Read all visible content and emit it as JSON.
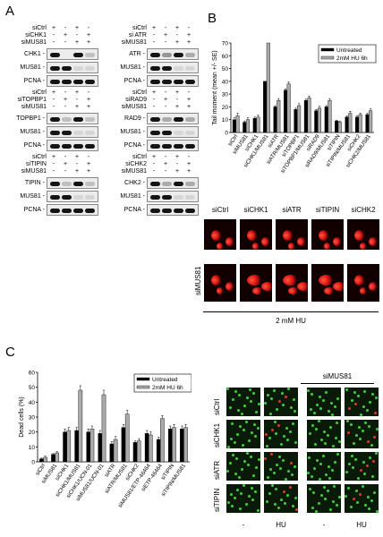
{
  "panels": {
    "a": "A",
    "b": "B",
    "c": "C"
  },
  "blots": [
    {
      "id": "chk1",
      "rows": [
        [
          "siCtrl",
          [
            "+",
            "-",
            "+",
            "-"
          ]
        ],
        [
          "siCHK1",
          [
            "-",
            "+",
            "-",
            "+"
          ]
        ],
        [
          "siMUS81",
          [
            "-",
            "-",
            "+",
            "+"
          ]
        ]
      ],
      "bands": [
        "CHK1 -",
        "MUS81 -",
        "PCNA -"
      ]
    },
    {
      "id": "atr",
      "rows": [
        [
          "siCtrl",
          [
            "+",
            "-",
            "+",
            "-"
          ]
        ],
        [
          "si ATR",
          [
            "-",
            "+",
            "-",
            "+"
          ]
        ],
        [
          "siMUS81",
          [
            "-",
            "-",
            "+",
            "+"
          ]
        ]
      ],
      "bands": [
        "ATR -",
        "MUS81 -",
        "PCNA -"
      ]
    },
    {
      "id": "topbp1",
      "rows": [
        [
          "siCtrl",
          [
            "+",
            "-",
            "+",
            "-"
          ]
        ],
        [
          "siTOPBP1",
          [
            "-",
            "+",
            "-",
            "+"
          ]
        ],
        [
          "siMUS81",
          [
            "-",
            "-",
            "+",
            "+"
          ]
        ]
      ],
      "bands": [
        "TOPBP1 -",
        "MUS81 -",
        "PCNA -"
      ]
    },
    {
      "id": "rad9",
      "rows": [
        [
          "siCtrl",
          [
            "+",
            "-",
            "+",
            "-"
          ]
        ],
        [
          "siRAD9",
          [
            "-",
            "+",
            "-",
            "+"
          ]
        ],
        [
          "siMUS81",
          [
            "-",
            "-",
            "+",
            "+"
          ]
        ]
      ],
      "bands": [
        "RAD9 -",
        "MUS81 -",
        "PCNA -"
      ]
    },
    {
      "id": "tipin",
      "rows": [
        [
          "siCtrl",
          [
            "+",
            "-",
            "+",
            "-"
          ]
        ],
        [
          "siTIPIN",
          [
            "-",
            "+",
            "-",
            "+"
          ]
        ],
        [
          "siMUS81",
          [
            "-",
            "-",
            "+",
            "+"
          ]
        ]
      ],
      "bands": [
        "TIPIN -",
        "MUS81 -",
        "PCNA -"
      ]
    },
    {
      "id": "chk2",
      "rows": [
        [
          "siCtrl",
          [
            "+",
            "-",
            "+",
            "-"
          ]
        ],
        [
          "siCHK2",
          [
            "-",
            "+",
            "-",
            "+"
          ]
        ],
        [
          "siMUS81",
          [
            "-",
            "-",
            "+",
            "+"
          ]
        ]
      ],
      "bands": [
        "CHK2 -",
        "MUS81 -",
        "PCNA -"
      ]
    }
  ],
  "comet": {
    "columns": [
      "siCtrl",
      "siCHK1",
      "siATR",
      "siTIPIN",
      "siCHK2"
    ],
    "row_label": "siMUS81",
    "condition": "2 mM HU"
  },
  "viability": {
    "top_label": "siMUS81",
    "rows": [
      "siCtrl",
      "siCHK1",
      "siATR",
      "siTIPIN"
    ],
    "bottom": [
      "-",
      "HU",
      "-",
      "HU"
    ]
  },
  "chart_data": [
    {
      "type": "bar",
      "ylabel": "Tail moment (mean +/- SE)",
      "ylim": [
        0,
        70
      ],
      "yticks": [
        0,
        10,
        20,
        30,
        40,
        50,
        60,
        70
      ],
      "categories": [
        "siCtrl",
        "siMUS81",
        "siCHK1",
        "siCHK1/MUS81",
        "siATR",
        "siATR/MUS81",
        "siTOPBP1",
        "siTOPBP1/MUS81",
        "siRAD9",
        "siRAD9/MUS81",
        "siTIPIN",
        "siTIPIN/MUS81",
        "siCHK2",
        "siCHK2/MUS81"
      ],
      "series": [
        {
          "name": "Untreated",
          "color": "#000000",
          "values": [
            10,
            8,
            11,
            40,
            20,
            33,
            18,
            25,
            17,
            20,
            9,
            12,
            12,
            14
          ]
        },
        {
          "name": "2mM HU 6h",
          "color": "#aaaaaa",
          "values": [
            13,
            10,
            12,
            70,
            25,
            38,
            21,
            27,
            19,
            25,
            8,
            15,
            14,
            17
          ]
        }
      ],
      "errors": [
        [
          1.5,
          1,
          1,
          0,
          1,
          1,
          1,
          1,
          1,
          1,
          0.5,
          1,
          1,
          1
        ],
        [
          2,
          1.5,
          1.5,
          0,
          1.5,
          1.5,
          1.5,
          1.5,
          1.5,
          1.5,
          1,
          1.5,
          1,
          1.5
        ]
      ],
      "legend": "top-right"
    },
    {
      "type": "bar",
      "ylabel": "Dead cells (%)",
      "ylim": [
        0,
        60
      ],
      "yticks": [
        0,
        10,
        20,
        30,
        40,
        50,
        60
      ],
      "categories": [
        "siCtrl",
        "siMUS81",
        "siCHK1",
        "siCHK1/MUS81",
        "siCHK1/UCN-01",
        "siMUS81/UCN-01",
        "siATR",
        "siATR/MUS81",
        "siCHK2",
        "siMUS81/ETP-46464",
        "siETP-46464",
        "siTIPIN",
        "siTIPIN/MUS81"
      ],
      "series": [
        {
          "name": "Untreated",
          "color": "#000000",
          "values": [
            2,
            5,
            20,
            21,
            20,
            19,
            12,
            23,
            13,
            19,
            15,
            22,
            22
          ]
        },
        {
          "name": "2mM HU 6h",
          "color": "#aaaaaa",
          "values": [
            3,
            6,
            21,
            48,
            22,
            45,
            15,
            32,
            14,
            18,
            29,
            23,
            23
          ]
        }
      ],
      "errors": [
        [
          0.5,
          0.5,
          2,
          2,
          2,
          2,
          1.5,
          2,
          1,
          2,
          1.5,
          2,
          2
        ],
        [
          0.8,
          0.8,
          2,
          3,
          2,
          3,
          2,
          2.5,
          1.5,
          2,
          2,
          2,
          2
        ]
      ],
      "legend": "top-right"
    }
  ]
}
